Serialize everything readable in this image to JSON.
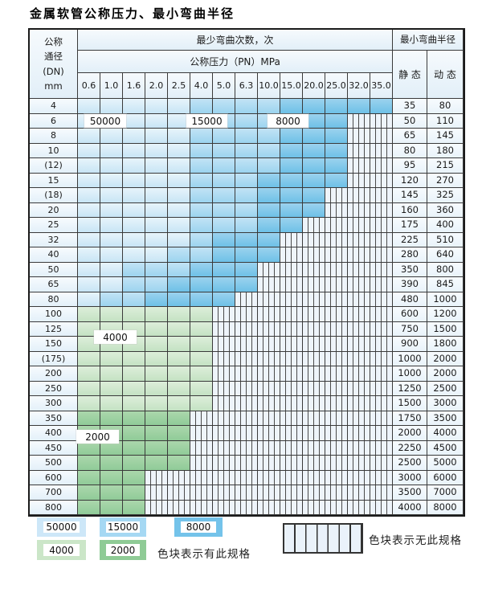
{
  "title": "金属软管公称压力、最小弯曲半径",
  "table": {
    "dn_header_lines": [
      "公称",
      "通径",
      "(DN)",
      "mm"
    ],
    "bend_cycles_header": "最少弯曲次数，次",
    "pressure_header": "公称压力（PN）MPa",
    "radius_header": "最小弯曲半径",
    "static_header": "静 态",
    "dynamic_header": "动 态",
    "pressure_columns": [
      "0.6",
      "1.0",
      "1.6",
      "2.0",
      "2.5",
      "4.0",
      "5.0",
      "6.3",
      "10.0",
      "15.0",
      "20.0",
      "25.0",
      "32.0",
      "35.0"
    ],
    "cell_legend_key": {
      "b1": "50000",
      "b2": "15000",
      "b3": "8000",
      "g1": "4000",
      "g2": "2000",
      "x": "no-spec-hatch"
    },
    "rows": [
      {
        "dn": "4",
        "cells": [
          "b1",
          "b1",
          "b1",
          "b1",
          "b1",
          "b2",
          "b2",
          "b2",
          "b2",
          "b3",
          "b3",
          "b3",
          "b3",
          "b3"
        ],
        "static": "35",
        "dynamic": "80"
      },
      {
        "dn": "6",
        "cells": [
          "b1",
          "b1",
          "b1",
          "b1",
          "b1",
          "b2",
          "b2",
          "b2",
          "b2",
          "b3",
          "b3",
          "b3",
          "x",
          "x"
        ],
        "static": "50",
        "dynamic": "110"
      },
      {
        "dn": "8",
        "cells": [
          "b1",
          "b1",
          "b1",
          "b1",
          "b1",
          "b2",
          "b2",
          "b2",
          "b2",
          "b3",
          "b3",
          "b3",
          "x",
          "x"
        ],
        "static": "65",
        "dynamic": "145"
      },
      {
        "dn": "10",
        "cells": [
          "b1",
          "b1",
          "b1",
          "b1",
          "b1",
          "b2",
          "b2",
          "b2",
          "b2",
          "b3",
          "b3",
          "b3",
          "x",
          "x"
        ],
        "static": "80",
        "dynamic": "180"
      },
      {
        "dn": "(12)",
        "cells": [
          "b1",
          "b1",
          "b1",
          "b1",
          "b1",
          "b2",
          "b2",
          "b2",
          "b2",
          "b3",
          "b3",
          "b3",
          "x",
          "x"
        ],
        "static": "95",
        "dynamic": "215"
      },
      {
        "dn": "15",
        "cells": [
          "b1",
          "b1",
          "b1",
          "b1",
          "b1",
          "b2",
          "b2",
          "b2",
          "b3",
          "b3",
          "b3",
          "b3",
          "x",
          "x"
        ],
        "static": "120",
        "dynamic": "270"
      },
      {
        "dn": "(18)",
        "cells": [
          "b1",
          "b1",
          "b1",
          "b1",
          "b1",
          "b2",
          "b2",
          "b2",
          "b3",
          "b3",
          "b3",
          "x",
          "x",
          "x"
        ],
        "static": "145",
        "dynamic": "325"
      },
      {
        "dn": "20",
        "cells": [
          "b1",
          "b1",
          "b1",
          "b1",
          "b1",
          "b2",
          "b2",
          "b2",
          "b3",
          "b3",
          "b3",
          "x",
          "x",
          "x"
        ],
        "static": "160",
        "dynamic": "360"
      },
      {
        "dn": "25",
        "cells": [
          "b1",
          "b1",
          "b1",
          "b1",
          "b1",
          "b2",
          "b2",
          "b2",
          "b3",
          "b3",
          "x",
          "x",
          "x",
          "x"
        ],
        "static": "175",
        "dynamic": "400"
      },
      {
        "dn": "32",
        "cells": [
          "b1",
          "b1",
          "b1",
          "b1",
          "b1",
          "b2",
          "b3",
          "b3",
          "b3",
          "x",
          "x",
          "x",
          "x",
          "x"
        ],
        "static": "225",
        "dynamic": "510"
      },
      {
        "dn": "40",
        "cells": [
          "b1",
          "b1",
          "b1",
          "b1",
          "b2",
          "b2",
          "b3",
          "b3",
          "b3",
          "x",
          "x",
          "x",
          "x",
          "x"
        ],
        "static": "280",
        "dynamic": "640"
      },
      {
        "dn": "50",
        "cells": [
          "b1",
          "b1",
          "b2",
          "b2",
          "b2",
          "b3",
          "b3",
          "b3",
          "x",
          "x",
          "x",
          "x",
          "x",
          "x"
        ],
        "static": "350",
        "dynamic": "800"
      },
      {
        "dn": "65",
        "cells": [
          "b1",
          "b1",
          "b2",
          "b2",
          "b3",
          "b3",
          "b3",
          "b3",
          "x",
          "x",
          "x",
          "x",
          "x",
          "x"
        ],
        "static": "390",
        "dynamic": "845"
      },
      {
        "dn": "80",
        "cells": [
          "b1",
          "b2",
          "b2",
          "b3",
          "b3",
          "b3",
          "b3",
          "x",
          "x",
          "x",
          "x",
          "x",
          "x",
          "x"
        ],
        "static": "480",
        "dynamic": "1000"
      },
      {
        "dn": "100",
        "cells": [
          "g1",
          "g1",
          "g1",
          "g1",
          "g1",
          "g1",
          "x",
          "x",
          "x",
          "x",
          "x",
          "x",
          "x",
          "x"
        ],
        "static": "600",
        "dynamic": "1200"
      },
      {
        "dn": "125",
        "cells": [
          "g1",
          "g1",
          "g1",
          "g1",
          "g1",
          "g1",
          "x",
          "x",
          "x",
          "x",
          "x",
          "x",
          "x",
          "x"
        ],
        "static": "750",
        "dynamic": "1500"
      },
      {
        "dn": "150",
        "cells": [
          "g1",
          "g1",
          "g1",
          "g1",
          "g1",
          "g1",
          "x",
          "x",
          "x",
          "x",
          "x",
          "x",
          "x",
          "x"
        ],
        "static": "900",
        "dynamic": "1800"
      },
      {
        "dn": "(175)",
        "cells": [
          "g1",
          "g1",
          "g1",
          "g1",
          "g1",
          "g1",
          "x",
          "x",
          "x",
          "x",
          "x",
          "x",
          "x",
          "x"
        ],
        "static": "1000",
        "dynamic": "2000"
      },
      {
        "dn": "200",
        "cells": [
          "g1",
          "g1",
          "g1",
          "g1",
          "g1",
          "g1",
          "x",
          "x",
          "x",
          "x",
          "x",
          "x",
          "x",
          "x"
        ],
        "static": "1000",
        "dynamic": "2000"
      },
      {
        "dn": "250",
        "cells": [
          "g1",
          "g1",
          "g1",
          "g1",
          "g1",
          "g1",
          "x",
          "x",
          "x",
          "x",
          "x",
          "x",
          "x",
          "x"
        ],
        "static": "1250",
        "dynamic": "2500"
      },
      {
        "dn": "300",
        "cells": [
          "g1",
          "g1",
          "g1",
          "g1",
          "g1",
          "g1",
          "x",
          "x",
          "x",
          "x",
          "x",
          "x",
          "x",
          "x"
        ],
        "static": "1500",
        "dynamic": "3000"
      },
      {
        "dn": "350",
        "cells": [
          "g2",
          "g2",
          "g2",
          "g2",
          "g2",
          "x",
          "x",
          "x",
          "x",
          "x",
          "x",
          "x",
          "x",
          "x"
        ],
        "static": "1750",
        "dynamic": "3500"
      },
      {
        "dn": "400",
        "cells": [
          "g2",
          "g2",
          "g2",
          "g2",
          "g2",
          "x",
          "x",
          "x",
          "x",
          "x",
          "x",
          "x",
          "x",
          "x"
        ],
        "static": "2000",
        "dynamic": "4000"
      },
      {
        "dn": "450",
        "cells": [
          "g2",
          "g2",
          "g2",
          "g2",
          "g2",
          "x",
          "x",
          "x",
          "x",
          "x",
          "x",
          "x",
          "x",
          "x"
        ],
        "static": "2250",
        "dynamic": "4500"
      },
      {
        "dn": "500",
        "cells": [
          "g2",
          "g2",
          "g2",
          "g2",
          "g2",
          "x",
          "x",
          "x",
          "x",
          "x",
          "x",
          "x",
          "x",
          "x"
        ],
        "static": "2500",
        "dynamic": "5000"
      },
      {
        "dn": "600",
        "cells": [
          "g2",
          "g2",
          "g2",
          "x",
          "x",
          "x",
          "x",
          "x",
          "x",
          "x",
          "x",
          "x",
          "x",
          "x"
        ],
        "static": "3000",
        "dynamic": "6000"
      },
      {
        "dn": "700",
        "cells": [
          "g2",
          "g2",
          "g2",
          "x",
          "x",
          "x",
          "x",
          "x",
          "x",
          "x",
          "x",
          "x",
          "x",
          "x"
        ],
        "static": "3500",
        "dynamic": "7000"
      },
      {
        "dn": "800",
        "cells": [
          "g2",
          "g2",
          "g2",
          "x",
          "x",
          "x",
          "x",
          "x",
          "x",
          "x",
          "x",
          "x",
          "x",
          "x"
        ],
        "static": "4000",
        "dynamic": "8000"
      }
    ]
  },
  "overlay_labels": {
    "l50000": "50000",
    "l15000": "15000",
    "l8000": "8000",
    "l4000": "4000",
    "l2000": "2000"
  },
  "legend": {
    "items": [
      {
        "label": "50000",
        "color": "#cde7f8"
      },
      {
        "label": "15000",
        "color": "#a5d8f3"
      },
      {
        "label": "8000",
        "color": "#74c3ea"
      },
      {
        "label": "4000",
        "color": "#cbe6c8"
      },
      {
        "label": "2000",
        "color": "#8fcb96"
      }
    ],
    "has_spec_text": "色块表示有此规格",
    "no_spec_text": "色块表示无此规格"
  },
  "colors": {
    "zone_50000": "#c8e5f5",
    "zone_15000": "#9cd4ef",
    "zone_8000": "#6ec1e7",
    "zone_4000": "#c4e2c3",
    "zone_2000": "#90cb98",
    "hatch_bg": "#eef4fa",
    "grid_line": "#3a3a3a"
  }
}
